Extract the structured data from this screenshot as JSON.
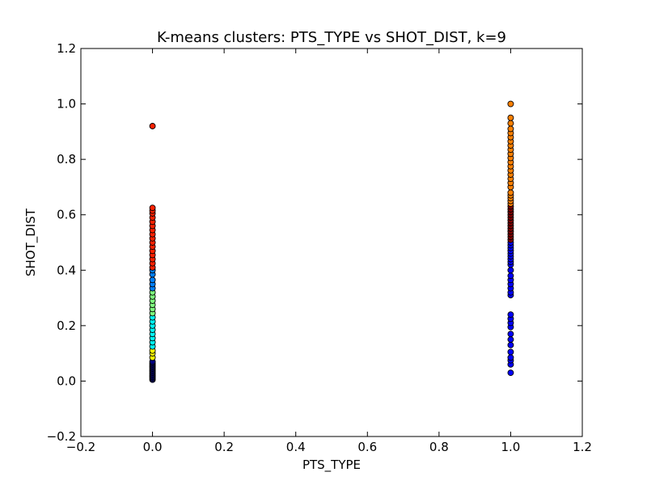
{
  "chart_data": {
    "type": "scatter",
    "title": "K-means clusters: PTS_TYPE vs SHOT_DIST, k=9",
    "xlabel": "PTS_TYPE",
    "ylabel": "SHOT_DIST",
    "xlim": [
      -0.2,
      1.2
    ],
    "ylim": [
      -0.2,
      1.2
    ],
    "xticks": [
      -0.2,
      0.0,
      0.2,
      0.4,
      0.6,
      0.8,
      1.0,
      1.2
    ],
    "yticks": [
      -0.2,
      0.0,
      0.2,
      0.4,
      0.6,
      0.8,
      1.0,
      1.2
    ],
    "xtick_labels": [
      "−0.2",
      "0.0",
      "0.2",
      "0.4",
      "0.6",
      "0.8",
      "1.0",
      "1.2"
    ],
    "ytick_labels": [
      "−0.2",
      "0.0",
      "0.2",
      "0.4",
      "0.6",
      "0.8",
      "1.0",
      "1.2"
    ],
    "grid": false,
    "legend": "none",
    "marker_edge_color": "#000000",
    "clusters": [
      {
        "color": "#000080",
        "x": 0,
        "y": [
          0.005,
          0.01,
          0.015,
          0.02,
          0.025,
          0.03,
          0.035,
          0.04,
          0.045,
          0.05,
          0.055,
          0.06,
          0.065,
          0.07
        ]
      },
      {
        "color": "#ffff00",
        "x": 0,
        "y": [
          0.085,
          0.1,
          0.11
        ]
      },
      {
        "color": "#00ffff",
        "x": 0,
        "y": [
          0.125,
          0.14,
          0.155,
          0.17,
          0.185,
          0.2,
          0.215,
          0.23
        ]
      },
      {
        "color": "#7fff7f",
        "x": 0,
        "y": [
          0.245,
          0.26,
          0.275,
          0.29,
          0.305,
          0.32
        ]
      },
      {
        "color": "#0080ff",
        "x": 0,
        "y": [
          0.335,
          0.35,
          0.365,
          0.385,
          0.4
        ]
      },
      {
        "color": "#ff2200",
        "x": 0,
        "y": [
          0.41,
          0.425,
          0.44,
          0.455,
          0.47,
          0.485,
          0.5,
          0.515,
          0.53,
          0.545,
          0.56,
          0.575,
          0.59,
          0.605,
          0.615,
          0.625,
          0.92
        ]
      },
      {
        "color": "#0000ff",
        "x": 1,
        "y": [
          0.03,
          0.06,
          0.075,
          0.085,
          0.105,
          0.13,
          0.15,
          0.17,
          0.195,
          0.21,
          0.225,
          0.24,
          0.31,
          0.32,
          0.335,
          0.35,
          0.365,
          0.38,
          0.4,
          0.42,
          0.43,
          0.44,
          0.45,
          0.46,
          0.47,
          0.48,
          0.49,
          0.5
        ]
      },
      {
        "color": "#800000",
        "x": 1,
        "y": [
          0.51,
          0.52,
          0.53,
          0.54,
          0.55,
          0.56,
          0.57,
          0.58,
          0.59,
          0.6,
          0.61,
          0.62,
          0.63
        ]
      },
      {
        "color": "#ff8000",
        "x": 1,
        "y": [
          0.64,
          0.65,
          0.66,
          0.67,
          0.68,
          0.7,
          0.715,
          0.73,
          0.745,
          0.76,
          0.775,
          0.79,
          0.805,
          0.82,
          0.835,
          0.85,
          0.865,
          0.88,
          0.895,
          0.91,
          0.93,
          0.95,
          1.0
        ]
      }
    ]
  }
}
